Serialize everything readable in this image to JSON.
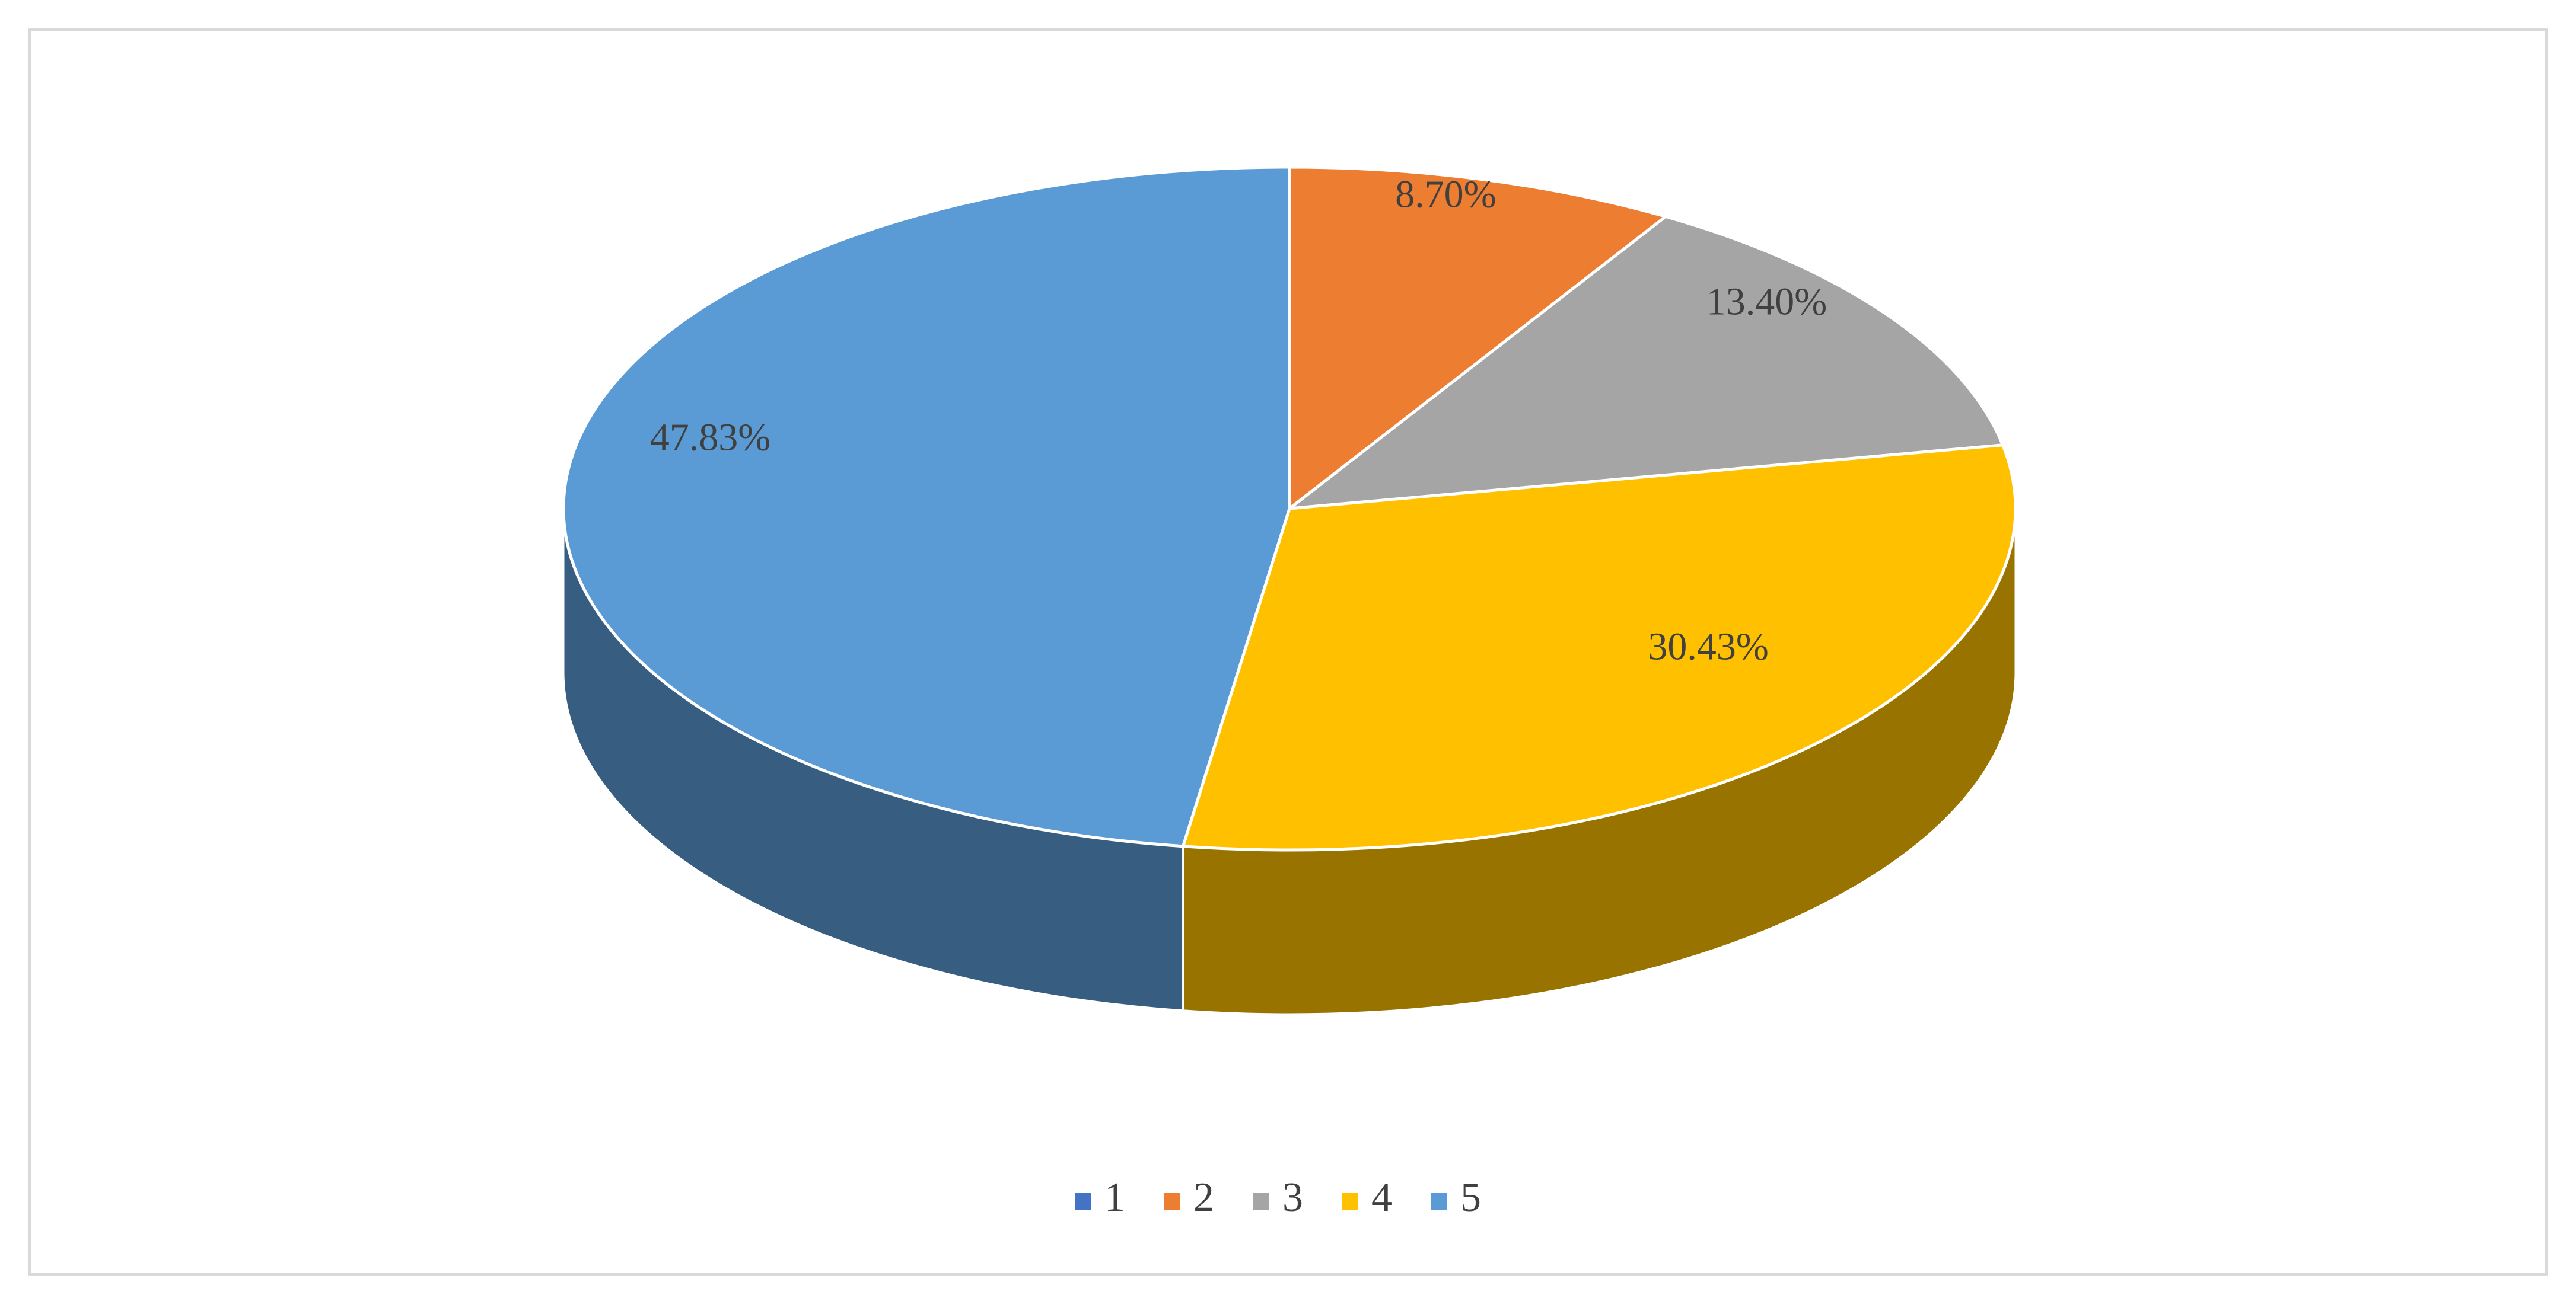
{
  "chart_data": {
    "type": "pie3d",
    "categories": [
      "1",
      "2",
      "3",
      "4",
      "5"
    ],
    "values": [
      0,
      8.7,
      13.4,
      30.43,
      47.83
    ],
    "value_labels": [
      null,
      "8.70%",
      "13.40%",
      "30.43%",
      "47.83%"
    ],
    "colors": [
      "#4472c4",
      "#ed7d31",
      "#a5a5a5",
      "#ffc000",
      "#5b9bd5"
    ],
    "legend": "bottom"
  }
}
